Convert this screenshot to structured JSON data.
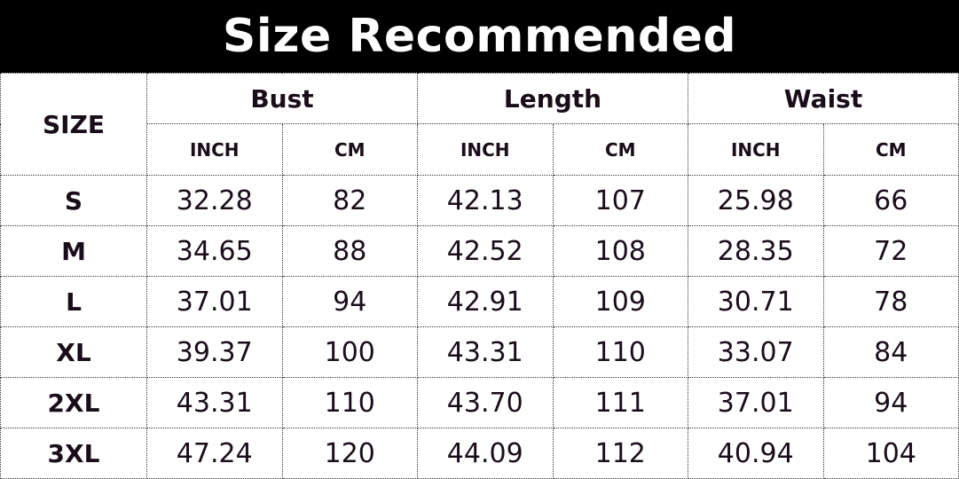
{
  "title": "Size Recommended",
  "size_header": "SIZE",
  "groups": [
    "Bust",
    "Length",
    "Waist"
  ],
  "units": [
    "INCH",
    "CM"
  ],
  "rows": [
    {
      "size": "S",
      "values": [
        "32.28",
        "82",
        "42.13",
        "107",
        "25.98",
        "66"
      ]
    },
    {
      "size": "M",
      "values": [
        "34.65",
        "88",
        "42.52",
        "108",
        "28.35",
        "72"
      ]
    },
    {
      "size": "L",
      "values": [
        "37.01",
        "94",
        "42.91",
        "109",
        "30.71",
        "78"
      ]
    },
    {
      "size": "XL",
      "values": [
        "39.37",
        "100",
        "43.31",
        "110",
        "33.07",
        "84"
      ]
    },
    {
      "size": "2XL",
      "values": [
        "43.31",
        "110",
        "43.70",
        "111",
        "37.01",
        "94"
      ]
    },
    {
      "size": "3XL",
      "values": [
        "47.24",
        "120",
        "44.09",
        "112",
        "40.94",
        "104"
      ]
    }
  ]
}
